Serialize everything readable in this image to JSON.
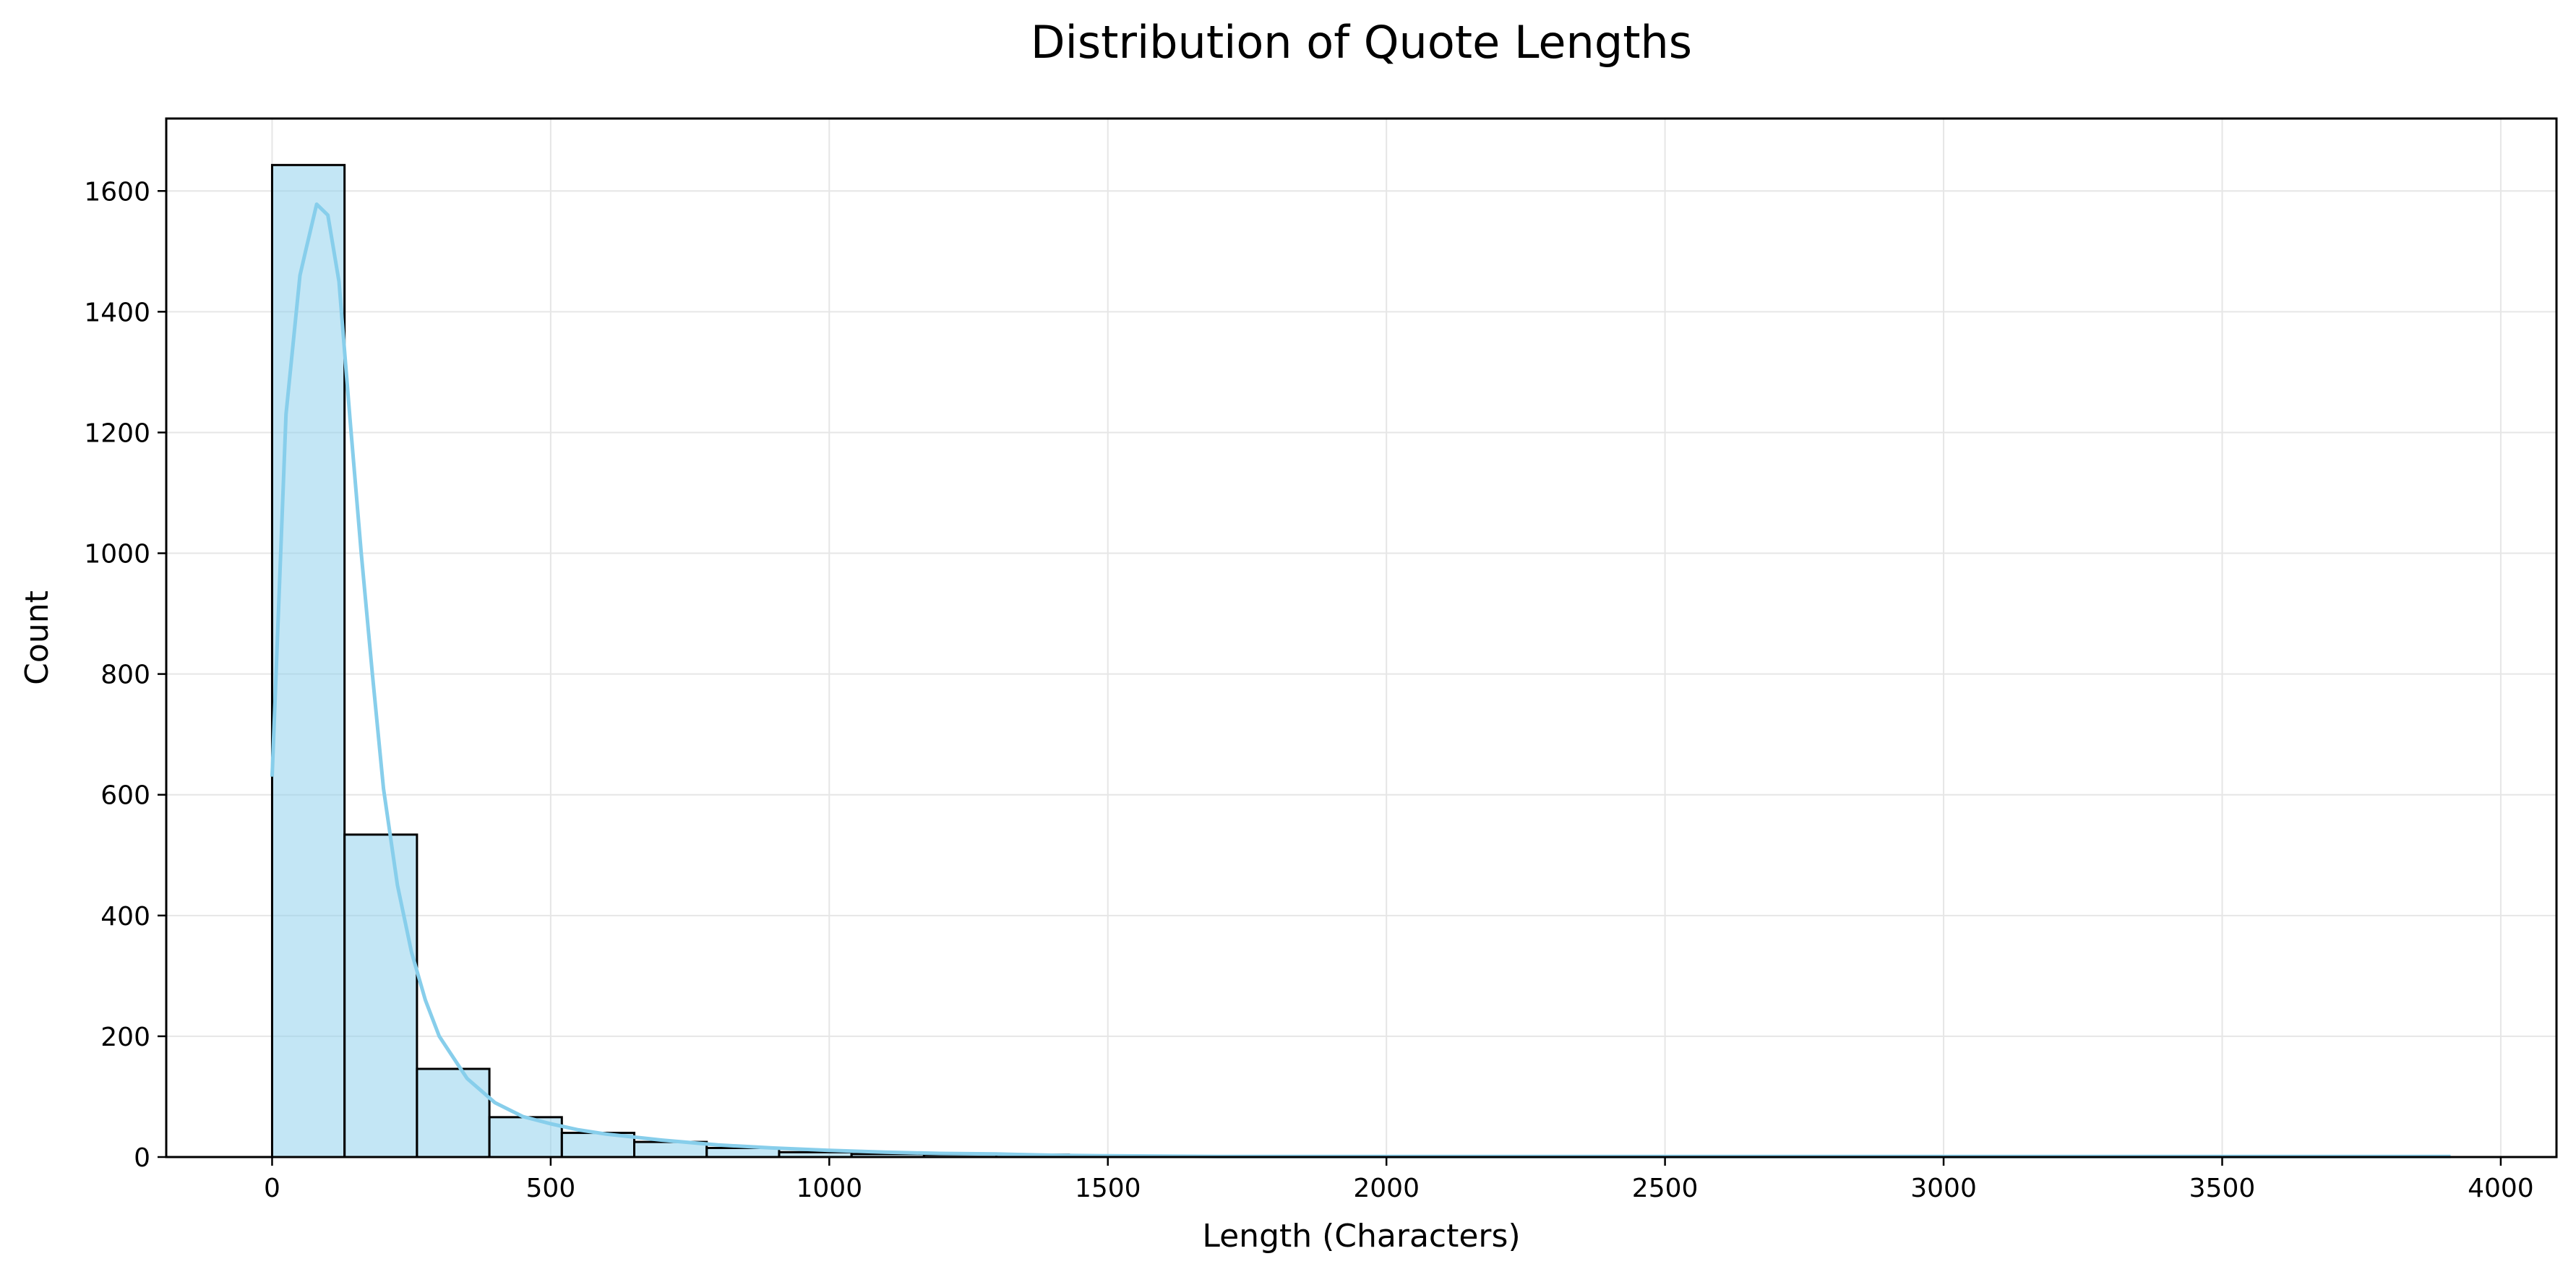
{
  "chart_data": {
    "type": "bar",
    "subtype": "histogram-with-kde",
    "title": "Distribution of Quote Lengths",
    "xlabel": "Length (Characters)",
    "ylabel": "Count",
    "xlim": [
      -190,
      4100
    ],
    "ylim": [
      0,
      1720
    ],
    "xticks": [
      0,
      500,
      1000,
      1500,
      2000,
      2500,
      3000,
      3500,
      4000
    ],
    "yticks": [
      0,
      200,
      400,
      600,
      800,
      1000,
      1200,
      1400,
      1600
    ],
    "grid": true,
    "bin_edges": [
      0,
      130,
      260,
      390,
      520,
      650,
      780,
      910,
      1040,
      1170,
      1300,
      1430,
      1560,
      1690,
      1820,
      1950,
      2080,
      2210,
      2340,
      2470,
      2600,
      2730,
      2860,
      2990,
      3120,
      3250,
      3380,
      3510,
      3640,
      3770,
      3900
    ],
    "counts": [
      1643,
      534,
      146,
      66,
      40,
      25,
      15,
      8,
      5,
      4,
      4,
      2,
      1,
      1,
      0,
      0,
      1,
      1,
      0,
      0,
      0,
      0,
      0,
      0,
      0,
      0,
      0,
      0,
      0,
      1
    ],
    "kde": {
      "x": [
        0,
        25,
        50,
        60,
        80,
        100,
        120,
        140,
        160,
        180,
        200,
        225,
        250,
        275,
        300,
        350,
        400,
        450,
        500,
        550,
        600,
        700,
        800,
        900,
        1000,
        1100,
        1200,
        1300,
        1400,
        1500,
        1700,
        2000,
        2500,
        3000,
        3500,
        3910
      ],
      "y": [
        630,
        1230,
        1460,
        1500,
        1578,
        1560,
        1450,
        1220,
        1000,
        800,
        610,
        450,
        340,
        260,
        200,
        130,
        90,
        67,
        55,
        45,
        38,
        28,
        20,
        15,
        11,
        8,
        6,
        5,
        3,
        2,
        1,
        1,
        1,
        1,
        1,
        1
      ]
    },
    "colors": {
      "bar_fill": "#87ceeb",
      "bar_fill_opacity": 0.5,
      "bar_edge": "#000000",
      "kde_line": "#87ceeb",
      "grid": "#e6e6e6"
    }
  }
}
